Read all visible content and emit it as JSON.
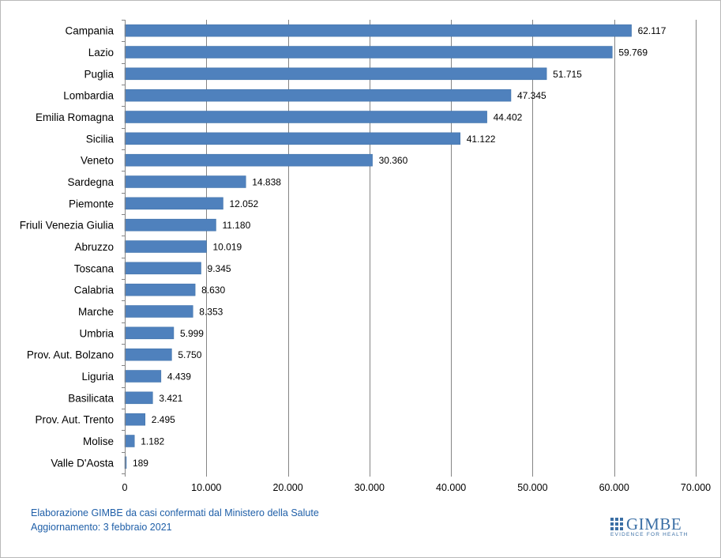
{
  "chart_data": {
    "type": "bar",
    "orientation": "horizontal",
    "categories": [
      "Campania",
      "Lazio",
      "Puglia",
      "Lombardia",
      "Emilia Romagna",
      "Sicilia",
      "Veneto",
      "Sardegna",
      "Piemonte",
      "Friuli Venezia Giulia",
      "Abruzzo",
      "Toscana",
      "Calabria",
      "Marche",
      "Umbria",
      "Prov. Aut. Bolzano",
      "Liguria",
      "Basilicata",
      "Prov. Aut. Trento",
      "Molise",
      "Valle D'Aosta"
    ],
    "values": [
      62117,
      59769,
      51715,
      47345,
      44402,
      41122,
      30360,
      14838,
      12052,
      11180,
      10019,
      9345,
      8630,
      8353,
      5999,
      5750,
      4439,
      3421,
      2495,
      1182,
      189
    ],
    "value_labels": [
      "62.117",
      "59.769",
      "51.715",
      "47.345",
      "44.402",
      "41.122",
      "30.360",
      "14.838",
      "12.052",
      "11.180",
      "10.019",
      "9.345",
      "8.630",
      "8.353",
      "5.999",
      "5.750",
      "4.439",
      "3.421",
      "2.495",
      "1.182",
      "189"
    ],
    "xlim": [
      0,
      70000
    ],
    "xticks": [
      0,
      10000,
      20000,
      30000,
      40000,
      50000,
      60000,
      70000
    ],
    "xtick_labels": [
      "0",
      "10.000",
      "20.000",
      "30.000",
      "40.000",
      "50.000",
      "60.000",
      "70.000"
    ],
    "grid": "vertical",
    "bar_color": "#4f81bd",
    "bar_border": "#3a6ea5",
    "gridline_color": "#858585"
  },
  "footer": {
    "source": "Elaborazione GIMBE da casi confermati dal Ministero della Salute",
    "updated": "Aggiornamento: 3 febbraio 2021",
    "text_color": "#1f5fa8"
  },
  "logo": {
    "name": "GIMBE",
    "tagline": "EVIDENCE FOR HEALTH",
    "color": "#3b6fa5",
    "icon": "gimbe-grid-icon"
  }
}
